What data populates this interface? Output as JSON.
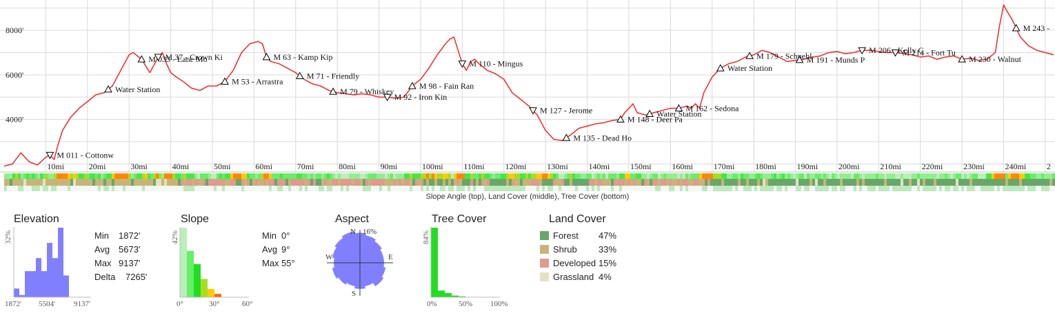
{
  "colors": {
    "profile_line": "#ee3333",
    "grid": "#d9d9d9",
    "elevation_hist": "#8080ff",
    "aspect_fill": "#8080ff",
    "tree_hist": "#22dd22",
    "forest": "#6aa66a",
    "shrub": "#c8b47a",
    "developed": "#e09a8e",
    "grassland": "#e2e2c2"
  },
  "chart_data": [
    {
      "type": "line",
      "name": "elevation-profile",
      "xlim": [
        0,
        252
      ],
      "ylim": [
        1700,
        9300
      ],
      "y_ticks": [
        {
          "value": 4000,
          "label": "4000'"
        },
        {
          "value": 6000,
          "label": "6000'"
        },
        {
          "value": 8000,
          "label": "8000'"
        }
      ],
      "x_ticks": [
        {
          "value": 10,
          "label": "10mi"
        },
        {
          "value": 20,
          "label": "20mi"
        },
        {
          "value": 30,
          "label": "30mi"
        },
        {
          "value": 40,
          "label": "40mi"
        },
        {
          "value": 50,
          "label": "50mi"
        },
        {
          "value": 60,
          "label": "60mi"
        },
        {
          "value": 70,
          "label": "70mi"
        },
        {
          "value": 80,
          "label": "80mi"
        },
        {
          "value": 90,
          "label": "90mi"
        },
        {
          "value": 100,
          "label": "100mi"
        },
        {
          "value": 110,
          "label": "110mi"
        },
        {
          "value": 120,
          "label": "120mi"
        },
        {
          "value": 130,
          "label": "130mi"
        },
        {
          "value": 140,
          "label": "140mi"
        },
        {
          "value": 150,
          "label": "150mi"
        },
        {
          "value": 160,
          "label": "160mi"
        },
        {
          "value": 170,
          "label": "170mi"
        },
        {
          "value": 180,
          "label": "180mi"
        },
        {
          "value": 190,
          "label": "190mi"
        },
        {
          "value": 200,
          "label": "200mi"
        },
        {
          "value": 210,
          "label": "210mi"
        },
        {
          "value": 220,
          "label": "220mi"
        },
        {
          "value": 230,
          "label": "230mi"
        },
        {
          "value": 240,
          "label": "240mi"
        },
        {
          "value": 250,
          "label": "2"
        }
      ],
      "x": [
        0,
        2,
        4,
        6,
        8,
        10,
        11,
        12,
        13,
        14,
        16,
        18,
        20,
        22,
        24,
        26,
        28,
        30,
        31,
        33,
        35,
        37,
        38,
        39,
        40,
        41,
        43,
        45,
        47,
        49,
        51,
        53,
        55,
        57,
        59,
        61,
        62,
        63,
        64,
        66,
        68,
        70,
        72,
        74,
        76,
        78,
        80,
        82,
        84,
        86,
        88,
        90,
        92,
        94,
        96,
        98,
        100,
        102,
        104,
        106,
        107,
        108,
        109,
        110,
        111,
        112,
        113,
        114,
        116,
        118,
        120,
        122,
        124,
        126,
        128,
        130,
        132,
        134,
        136,
        138,
        140,
        142,
        144,
        146,
        148,
        149,
        150,
        151,
        152,
        154,
        156,
        158,
        160,
        162,
        164,
        165,
        166,
        167,
        168,
        170,
        172,
        174,
        176,
        178,
        180,
        182,
        184,
        186,
        188,
        190,
        192,
        194,
        196,
        198,
        200,
        202,
        204,
        206,
        208,
        210,
        212,
        214,
        216,
        218,
        220,
        222,
        224,
        226,
        228,
        230,
        232,
        234,
        236,
        238,
        239,
        240,
        241,
        242,
        243,
        244,
        246,
        248,
        250,
        252
      ],
      "y": [
        1900,
        2000,
        2500,
        2100,
        1950,
        2300,
        2400,
        2200,
        2900,
        3500,
        4100,
        4500,
        4800,
        5100,
        5200,
        5500,
        6200,
        6900,
        7000,
        6700,
        6100,
        6800,
        7000,
        6500,
        6100,
        5950,
        5700,
        5400,
        5300,
        5500,
        5500,
        5700,
        6200,
        7000,
        7400,
        7500,
        7400,
        6800,
        6600,
        6500,
        6300,
        6100,
        5800,
        5600,
        5500,
        5300,
        5200,
        5150,
        5100,
        5150,
        5100,
        5000,
        5000,
        4950,
        5000,
        5500,
        5800,
        6300,
        6900,
        7400,
        7600,
        7700,
        7100,
        6500,
        6200,
        6600,
        6700,
        6500,
        6200,
        6050,
        5800,
        5200,
        4900,
        4600,
        4200,
        3500,
        3100,
        3050,
        3300,
        3600,
        3700,
        3800,
        3850,
        3950,
        4000,
        4300,
        4500,
        4700,
        4300,
        4200,
        4300,
        4400,
        4500,
        4500,
        4600,
        4500,
        4700,
        4500,
        5200,
        5900,
        6300,
        6500,
        6600,
        6800,
        6900,
        7100,
        7000,
        6800,
        6600,
        6650,
        6700,
        6800,
        6850,
        7000,
        7050,
        6950,
        7000,
        7100,
        7100,
        7050,
        7000,
        7000,
        6950,
        6900,
        6800,
        6850,
        6700,
        6800,
        6850,
        6700,
        6750,
        6650,
        6700,
        7000,
        8200,
        9137,
        8800,
        8500,
        8100,
        7700,
        7300,
        7100,
        7000,
        6900
      ]
    },
    {
      "type": "bar",
      "name": "elevation-histogram",
      "axis_labels": {
        "min": "1872'",
        "mid": "5504'",
        "max": "9137'",
        "peak": "32%"
      },
      "values": [
        4,
        1,
        12,
        12,
        18,
        12,
        25,
        18,
        32,
        10
      ],
      "ylim": [
        0,
        32
      ]
    },
    {
      "type": "bar",
      "name": "slope-histogram",
      "axis_labels": {
        "min": "0°",
        "mid": "30°",
        "max": "60°",
        "peak": "42%"
      },
      "values": [
        42,
        28,
        20,
        11,
        5,
        2
      ],
      "bar_colors": [
        "#b8f0b8",
        "#66ee66",
        "#22dd22",
        "#aadd22",
        "#ffcc00",
        "#ff6600"
      ],
      "ylim": [
        0,
        42
      ]
    },
    {
      "type": "pie",
      "name": "aspect-rose",
      "labels": {
        "N": "N",
        "S": "S",
        "E": "E",
        "W": "W",
        "peak": "16%"
      },
      "values": [
        15,
        14,
        13,
        12,
        12,
        13,
        14,
        12,
        13,
        12,
        13,
        14,
        13,
        14,
        15,
        16
      ],
      "max": 16
    },
    {
      "type": "bar",
      "name": "tree-cover-histogram",
      "axis_labels": {
        "min": "0%",
        "mid": "50%",
        "max": "100%",
        "peak": "84%"
      },
      "values": [
        84,
        8,
        5,
        2,
        1,
        0,
        0,
        0,
        0,
        0
      ],
      "ylim": [
        0,
        84
      ]
    }
  ],
  "waypoints": [
    {
      "mile": 11,
      "label": "M 011 - Cottonw",
      "dir": "down"
    },
    {
      "mile": 25,
      "label": "Water Station",
      "dir": "up"
    },
    {
      "mile": 33,
      "label": "M 033 - Lane Mo",
      "dir": "up"
    },
    {
      "mile": 37,
      "label": "M 37 - Crown Ki",
      "dir": "down"
    },
    {
      "mile": 53,
      "label": "M 53 - Arrastra",
      "dir": "up"
    },
    {
      "mile": 63,
      "label": "M 63 - Kamp Kip",
      "dir": "up"
    },
    {
      "mile": 71,
      "label": "M 71 - Friendly",
      "dir": "up"
    },
    {
      "mile": 79,
      "label": "M 79 - Whiskey",
      "dir": "up"
    },
    {
      "mile": 92,
      "label": "M 92 - Iron Kin",
      "dir": "down"
    },
    {
      "mile": 98,
      "label": "M 98 - Fain Ran",
      "dir": "up"
    },
    {
      "mile": 110,
      "label": "M 110 - Mingus",
      "dir": "down"
    },
    {
      "mile": 127,
      "label": "M 127 - Jerome",
      "dir": "down"
    },
    {
      "mile": 135,
      "label": "M 135 - Dead Ho",
      "dir": "up"
    },
    {
      "mile": 148,
      "label": "M 148 - Deer Pa",
      "dir": "up"
    },
    {
      "mile": 155,
      "label": "Water Station",
      "dir": "up"
    },
    {
      "mile": 162,
      "label": "M 162 - Sedona",
      "dir": "up"
    },
    {
      "mile": 172,
      "label": "Water Station",
      "dir": "up"
    },
    {
      "mile": 179,
      "label": "M 179 - Schnebl",
      "dir": "up"
    },
    {
      "mile": 191,
      "label": "M 191 - Munds P",
      "dir": "up"
    },
    {
      "mile": 206,
      "label": "M 206 - Kelly C",
      "dir": "down"
    },
    {
      "mile": 214,
      "label": "M 214 - Fort Tu",
      "dir": "down"
    },
    {
      "mile": 230,
      "label": "M 230 - Walnut",
      "dir": "up"
    },
    {
      "mile": 243,
      "label": "M 243 -",
      "dir": "up"
    }
  ],
  "caption": "Slope Angle (top), Land Cover (middle), Tree Cover (bottom)",
  "elevation": {
    "title": "Elevation",
    "stats": [
      {
        "label": "Min",
        "value": "1872'"
      },
      {
        "label": "Avg",
        "value": "5673'"
      },
      {
        "label": "Max",
        "value": "9137'"
      },
      {
        "label": "Delta",
        "value": "7265'"
      }
    ]
  },
  "slope": {
    "title": "Slope",
    "stats": [
      {
        "label": "Min",
        "value": "0°"
      },
      {
        "label": "Avg",
        "value": "9°"
      },
      {
        "label": "Max",
        "value": "55°"
      }
    ]
  },
  "aspect": {
    "title": "Aspect"
  },
  "tree_cover": {
    "title": "Tree Cover"
  },
  "land_cover": {
    "title": "Land Cover",
    "items": [
      {
        "label": "Forest",
        "value": "47%",
        "color": "#6aa66a"
      },
      {
        "label": "Shrub",
        "value": "33%",
        "color": "#c8b47a"
      },
      {
        "label": "Developed",
        "value": "15%",
        "color": "#e09a8e"
      },
      {
        "label": "Grassland",
        "value": "4%",
        "color": "#e2e2c2"
      }
    ]
  }
}
